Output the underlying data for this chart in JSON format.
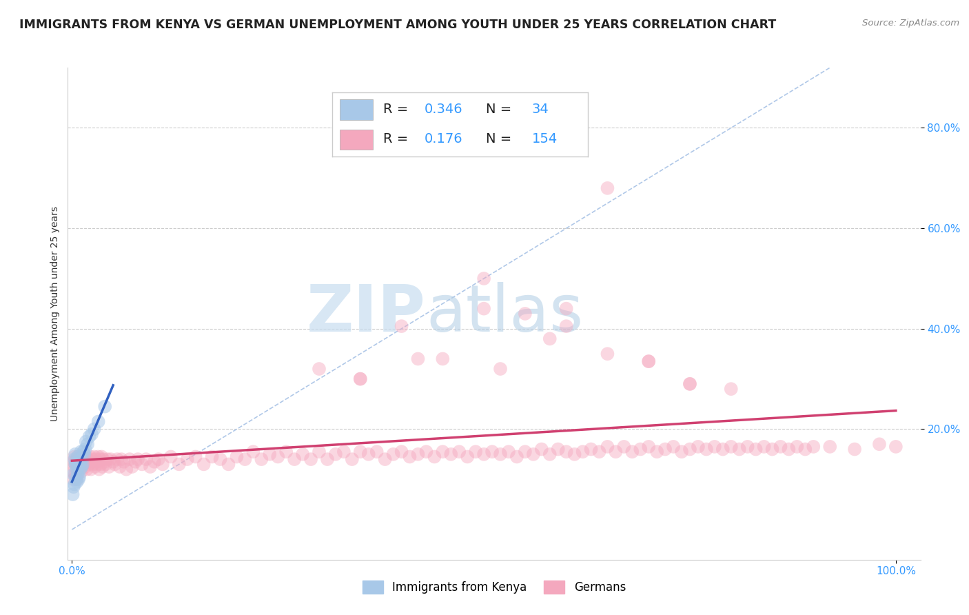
{
  "title": "IMMIGRANTS FROM KENYA VS GERMAN UNEMPLOYMENT AMONG YOUTH UNDER 25 YEARS CORRELATION CHART",
  "source": "Source: ZipAtlas.com",
  "ylabel": "Unemployment Among Youth under 25 years",
  "x_tick_labels": [
    "0.0%",
    "",
    "",
    "",
    "",
    "",
    "",
    "",
    "",
    "",
    "100.0%"
  ],
  "x_tick_values": [
    0.0,
    0.1,
    0.2,
    0.3,
    0.4,
    0.5,
    0.6,
    0.7,
    0.8,
    0.9,
    1.0
  ],
  "y_tick_labels": [
    "20.0%",
    "40.0%",
    "60.0%",
    "80.0%"
  ],
  "y_tick_values": [
    0.2,
    0.4,
    0.6,
    0.8
  ],
  "xlim": [
    -0.005,
    1.03
  ],
  "ylim": [
    -0.06,
    0.92
  ],
  "blue_color": "#a8c8e8",
  "pink_color": "#f4a8be",
  "trend_blue": "#3060c0",
  "trend_pink": "#d04070",
  "diagonal_color": "#b0c8e8",
  "watermark_zip": "ZIP",
  "watermark_atlas": "atlas",
  "title_fontsize": 12.5,
  "axis_label_fontsize": 10,
  "tick_fontsize": 11,
  "legend_fontsize": 14,
  "blue_scatter_x": [
    0.001,
    0.002,
    0.002,
    0.003,
    0.003,
    0.004,
    0.004,
    0.005,
    0.005,
    0.006,
    0.006,
    0.007,
    0.007,
    0.007,
    0.008,
    0.008,
    0.009,
    0.009,
    0.01,
    0.01,
    0.011,
    0.012,
    0.012,
    0.013,
    0.014,
    0.015,
    0.016,
    0.017,
    0.019,
    0.021,
    0.024,
    0.027,
    0.032,
    0.04
  ],
  "blue_scatter_y": [
    0.07,
    0.11,
    0.085,
    0.14,
    0.09,
    0.13,
    0.15,
    0.1,
    0.13,
    0.095,
    0.12,
    0.145,
    0.11,
    0.13,
    0.135,
    0.1,
    0.14,
    0.105,
    0.13,
    0.12,
    0.155,
    0.125,
    0.14,
    0.13,
    0.155,
    0.15,
    0.16,
    0.175,
    0.17,
    0.185,
    0.19,
    0.2,
    0.215,
    0.245
  ],
  "pink_scatter_x": [
    0.001,
    0.002,
    0.002,
    0.003,
    0.003,
    0.004,
    0.004,
    0.005,
    0.005,
    0.006,
    0.006,
    0.007,
    0.008,
    0.008,
    0.009,
    0.01,
    0.011,
    0.012,
    0.013,
    0.014,
    0.015,
    0.016,
    0.017,
    0.018,
    0.019,
    0.02,
    0.021,
    0.022,
    0.023,
    0.024,
    0.025,
    0.026,
    0.027,
    0.028,
    0.029,
    0.03,
    0.031,
    0.032,
    0.033,
    0.034,
    0.035,
    0.036,
    0.037,
    0.038,
    0.04,
    0.041,
    0.043,
    0.045,
    0.047,
    0.05,
    0.052,
    0.055,
    0.058,
    0.06,
    0.063,
    0.066,
    0.07,
    0.073,
    0.077,
    0.08,
    0.085,
    0.09,
    0.095,
    0.1,
    0.105,
    0.11,
    0.12,
    0.13,
    0.14,
    0.15,
    0.16,
    0.17,
    0.18,
    0.19,
    0.2,
    0.21,
    0.22,
    0.23,
    0.24,
    0.25,
    0.26,
    0.27,
    0.28,
    0.29,
    0.3,
    0.31,
    0.32,
    0.33,
    0.34,
    0.35,
    0.36,
    0.37,
    0.38,
    0.39,
    0.4,
    0.41,
    0.42,
    0.43,
    0.44,
    0.45,
    0.46,
    0.47,
    0.48,
    0.49,
    0.5,
    0.51,
    0.52,
    0.53,
    0.54,
    0.55,
    0.56,
    0.57,
    0.58,
    0.59,
    0.6,
    0.61,
    0.62,
    0.63,
    0.64,
    0.65,
    0.66,
    0.67,
    0.68,
    0.69,
    0.7,
    0.71,
    0.72,
    0.73,
    0.74,
    0.75,
    0.76,
    0.77,
    0.78,
    0.79,
    0.8,
    0.81,
    0.82,
    0.83,
    0.84,
    0.85,
    0.86,
    0.87,
    0.88,
    0.89,
    0.9,
    0.92,
    0.95,
    0.98,
    1.0,
    0.5,
    0.6,
    0.65,
    0.7,
    0.75,
    0.52,
    0.58,
    0.35,
    0.42
  ],
  "pink_scatter_y": [
    0.115,
    0.135,
    0.1,
    0.125,
    0.145,
    0.11,
    0.135,
    0.105,
    0.14,
    0.1,
    0.13,
    0.145,
    0.12,
    0.14,
    0.125,
    0.14,
    0.115,
    0.135,
    0.145,
    0.13,
    0.14,
    0.125,
    0.145,
    0.12,
    0.14,
    0.135,
    0.13,
    0.145,
    0.12,
    0.14,
    0.135,
    0.13,
    0.145,
    0.125,
    0.14,
    0.135,
    0.13,
    0.145,
    0.12,
    0.14,
    0.13,
    0.145,
    0.125,
    0.14,
    0.135,
    0.13,
    0.14,
    0.125,
    0.14,
    0.135,
    0.13,
    0.14,
    0.125,
    0.14,
    0.135,
    0.12,
    0.14,
    0.125,
    0.135,
    0.14,
    0.13,
    0.14,
    0.125,
    0.135,
    0.14,
    0.13,
    0.145,
    0.13,
    0.14,
    0.145,
    0.13,
    0.145,
    0.14,
    0.13,
    0.145,
    0.14,
    0.155,
    0.14,
    0.15,
    0.145,
    0.155,
    0.14,
    0.15,
    0.14,
    0.155,
    0.14,
    0.15,
    0.155,
    0.14,
    0.155,
    0.15,
    0.155,
    0.14,
    0.15,
    0.155,
    0.145,
    0.15,
    0.155,
    0.145,
    0.155,
    0.15,
    0.155,
    0.145,
    0.155,
    0.15,
    0.155,
    0.15,
    0.155,
    0.145,
    0.155,
    0.15,
    0.16,
    0.15,
    0.16,
    0.155,
    0.15,
    0.155,
    0.16,
    0.155,
    0.165,
    0.155,
    0.165,
    0.155,
    0.16,
    0.165,
    0.155,
    0.16,
    0.165,
    0.155,
    0.16,
    0.165,
    0.16,
    0.165,
    0.16,
    0.165,
    0.16,
    0.165,
    0.16,
    0.165,
    0.16,
    0.165,
    0.16,
    0.165,
    0.16,
    0.165,
    0.165,
    0.16,
    0.17,
    0.165,
    0.44,
    0.405,
    0.35,
    0.335,
    0.29,
    0.32,
    0.38,
    0.3,
    0.34
  ],
  "pink_outlier_x": [
    0.65,
    0.6,
    0.55,
    0.4,
    0.45,
    0.7,
    0.75,
    0.8,
    0.5,
    0.35,
    0.3
  ],
  "pink_outlier_y": [
    0.68,
    0.44,
    0.43,
    0.405,
    0.34,
    0.335,
    0.29,
    0.28,
    0.5,
    0.3,
    0.32
  ]
}
